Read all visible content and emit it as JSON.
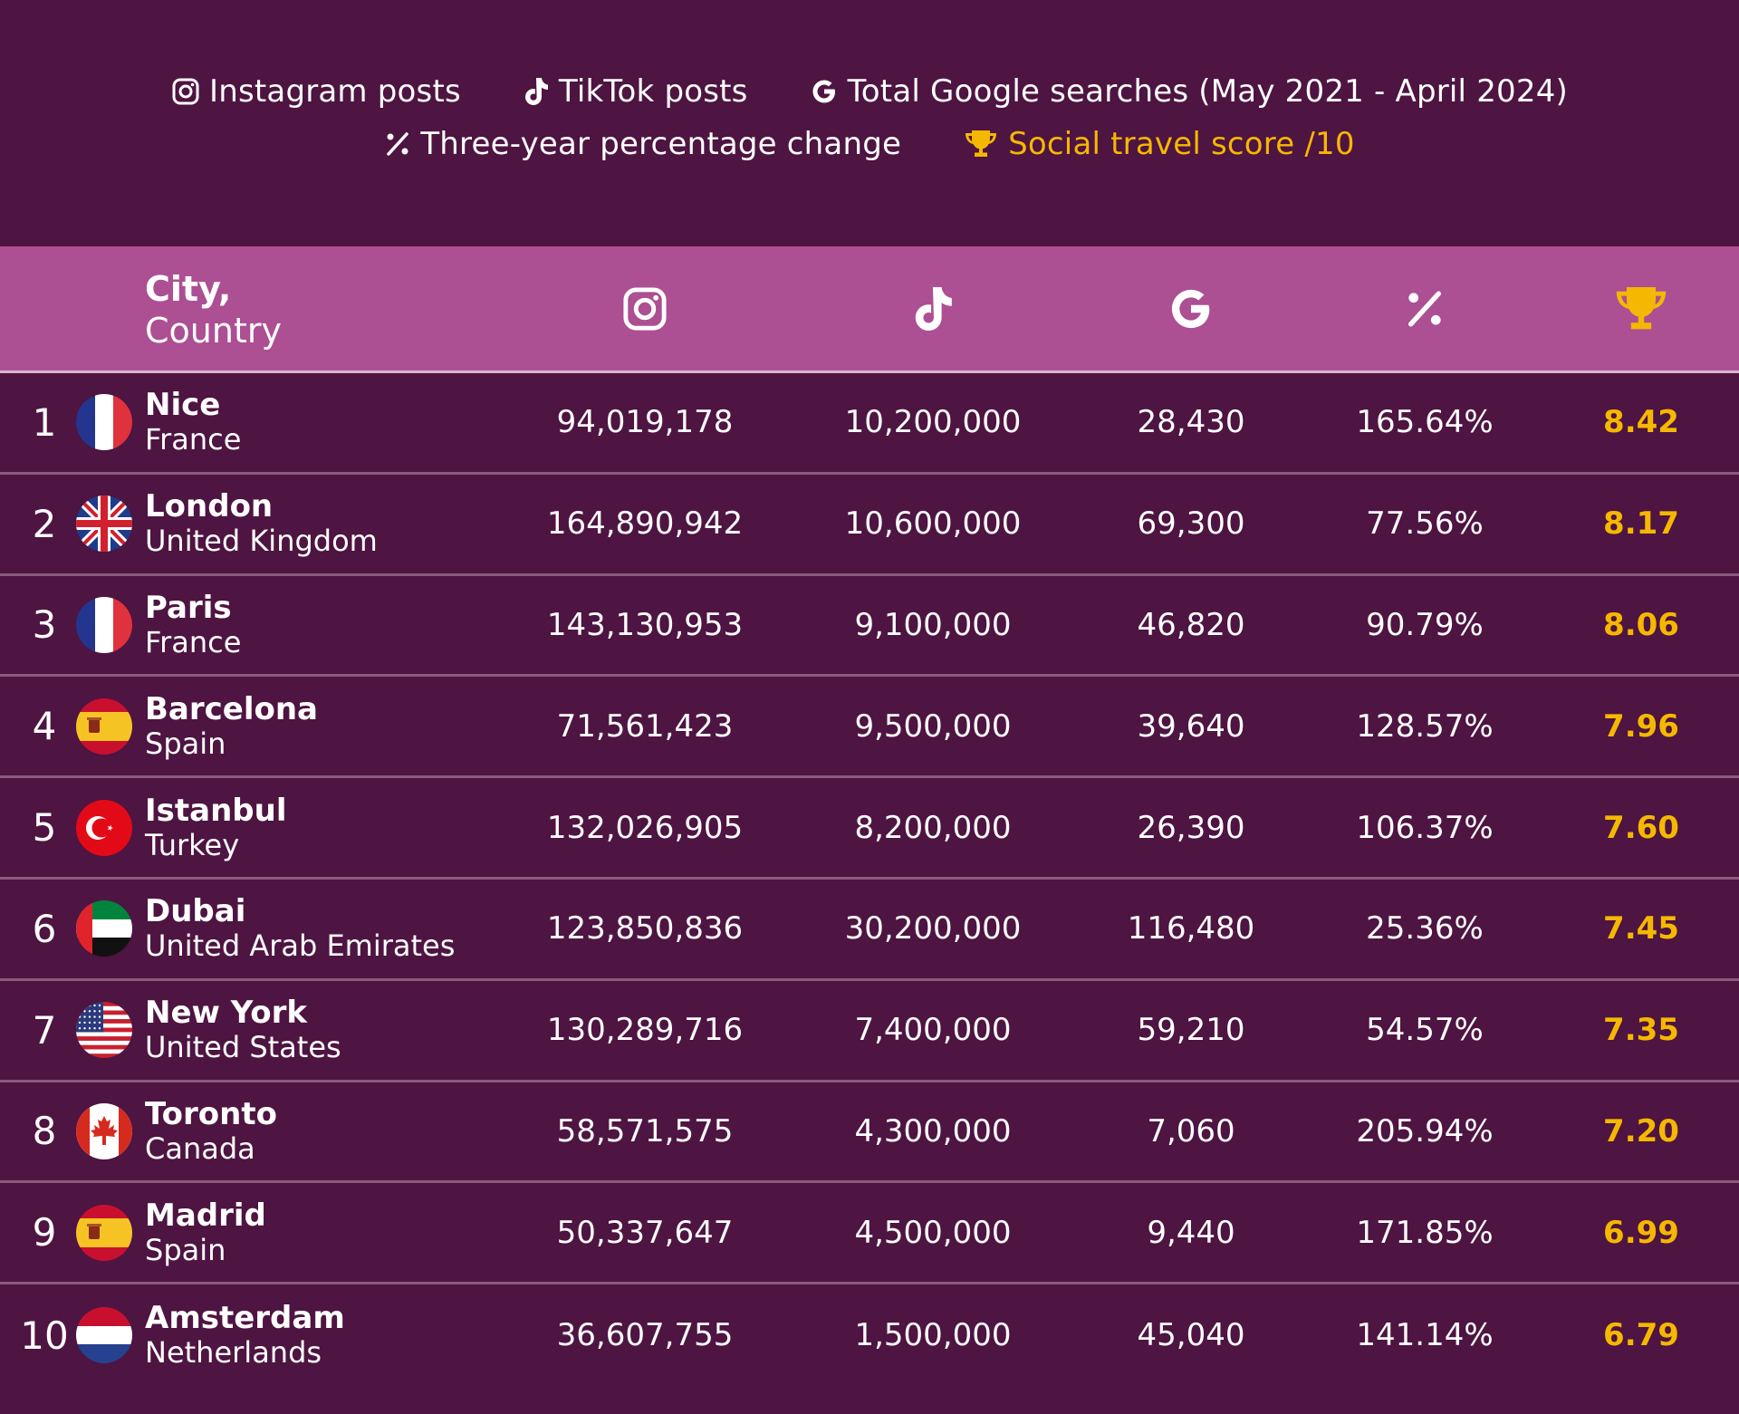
{
  "legend": {
    "instagram": "Instagram posts",
    "tiktok": "TikTok posts",
    "google": "Total Google searches (May 2021 - April 2024)",
    "percent": "Three-year percentage change",
    "score": "Social travel score /10"
  },
  "header": {
    "city_line1": "City,",
    "city_line2": "Country",
    "icons": [
      "instagram-icon",
      "tiktok-icon",
      "google-icon",
      "percent-icon",
      "trophy-icon"
    ]
  },
  "colors": {
    "background": "#4e1442",
    "header": "#ac4f93",
    "score": "#f5b800",
    "divider": "#8a5a7f"
  },
  "chart_data": {
    "type": "table",
    "columns": [
      "City, Country",
      "Instagram posts",
      "TikTok posts",
      "Total Google searches (May 2021 - April 2024)",
      "Three-year percentage change",
      "Social travel score /10"
    ],
    "rows": [
      {
        "rank": "1",
        "city": "Nice",
        "country": "France",
        "flag": "france",
        "instagram": "94,019,178",
        "tiktok": "10,200,000",
        "google": "28,430",
        "change": "165.64%",
        "score": "8.42"
      },
      {
        "rank": "2",
        "city": "London",
        "country": "United Kingdom",
        "flag": "uk",
        "instagram": "164,890,942",
        "tiktok": "10,600,000",
        "google": "69,300",
        "change": "77.56%",
        "score": "8.17"
      },
      {
        "rank": "3",
        "city": "Paris",
        "country": "France",
        "flag": "france",
        "instagram": "143,130,953",
        "tiktok": "9,100,000",
        "google": "46,820",
        "change": "90.79%",
        "score": "8.06"
      },
      {
        "rank": "4",
        "city": "Barcelona",
        "country": "Spain",
        "flag": "spain",
        "instagram": "71,561,423",
        "tiktok": "9,500,000",
        "google": "39,640",
        "change": "128.57%",
        "score": "7.96"
      },
      {
        "rank": "5",
        "city": "Istanbul",
        "country": "Turkey",
        "flag": "turkey",
        "instagram": "132,026,905",
        "tiktok": "8,200,000",
        "google": "26,390",
        "change": "106.37%",
        "score": "7.60"
      },
      {
        "rank": "6",
        "city": "Dubai",
        "country": "United Arab Emirates",
        "flag": "uae",
        "instagram": "123,850,836",
        "tiktok": "30,200,000",
        "google": "116,480",
        "change": "25.36%",
        "score": "7.45"
      },
      {
        "rank": "7",
        "city": "New York",
        "country": "United States",
        "flag": "usa",
        "instagram": "130,289,716",
        "tiktok": "7,400,000",
        "google": "59,210",
        "change": "54.57%",
        "score": "7.35"
      },
      {
        "rank": "8",
        "city": "Toronto",
        "country": "Canada",
        "flag": "canada",
        "instagram": "58,571,575",
        "tiktok": "4,300,000",
        "google": "7,060",
        "change": "205.94%",
        "score": "7.20"
      },
      {
        "rank": "9",
        "city": "Madrid",
        "country": "Spain",
        "flag": "spain",
        "instagram": "50,337,647",
        "tiktok": "4,500,000",
        "google": "9,440",
        "change": "171.85%",
        "score": "6.99"
      },
      {
        "rank": "10",
        "city": "Amsterdam",
        "country": "Netherlands",
        "flag": "netherlands",
        "instagram": "36,607,755",
        "tiktok": "1,500,000",
        "google": "45,040",
        "change": "141.14%",
        "score": "6.79"
      }
    ]
  }
}
